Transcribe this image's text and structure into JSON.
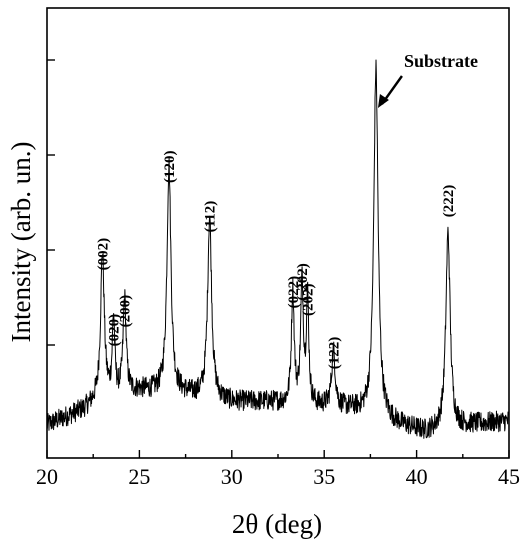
{
  "chart_data": {
    "type": "line",
    "xlabel": "2θ (deg)",
    "ylabel": "Intensity (arb. un.)",
    "xlim": [
      20,
      45
    ],
    "ylim": [
      0,
      1
    ],
    "x_ticks": [
      20,
      25,
      30,
      35,
      40,
      45
    ],
    "y_ticks": [
      0.25,
      0.5,
      0.75,
      1.0
    ],
    "y_tick_labels_shown": false,
    "grid": false,
    "legend": "none",
    "line_color": "#000000",
    "baseline_noise": [
      [
        20.0,
        0.04
      ],
      [
        21.0,
        0.06
      ],
      [
        22.0,
        0.08
      ],
      [
        22.6,
        0.1
      ],
      [
        25.0,
        0.13
      ],
      [
        27.5,
        0.12
      ],
      [
        30.0,
        0.1
      ],
      [
        32.0,
        0.1
      ],
      [
        36.5,
        0.08
      ],
      [
        39.0,
        0.04
      ],
      [
        40.5,
        0.02
      ],
      [
        43.0,
        0.04
      ],
      [
        45.0,
        0.05
      ]
    ],
    "peaks": [
      {
        "label": "(002)",
        "x": 23.0,
        "y": 0.42,
        "width": 0.12
      },
      {
        "label": "(020)",
        "x": 23.6,
        "y": 0.22,
        "width": 0.08
      },
      {
        "label": "(200)",
        "x": 24.2,
        "y": 0.27,
        "width": 0.1
      },
      {
        "label": "(120)",
        "x": 26.6,
        "y": 0.65,
        "width": 0.13
      },
      {
        "label": "(112)",
        "x": 28.8,
        "y": 0.52,
        "width": 0.13
      },
      {
        "label": "(022)",
        "x": 33.3,
        "y": 0.32,
        "width": 0.09
      },
      {
        "label": "(-202)",
        "x": 33.8,
        "y": 0.34,
        "width": 0.09
      },
      {
        "label": "(202)",
        "x": 34.1,
        "y": 0.3,
        "width": 0.08
      },
      {
        "label": "(122)",
        "x": 35.5,
        "y": 0.16,
        "width": 0.12
      },
      {
        "label": "",
        "x": 37.8,
        "y": 1.0,
        "width": 0.14
      },
      {
        "label": "(222)",
        "x": 41.7,
        "y": 0.56,
        "width": 0.14
      }
    ],
    "annotations": [
      {
        "text": "Substrate",
        "x": 37.8
      }
    ]
  }
}
